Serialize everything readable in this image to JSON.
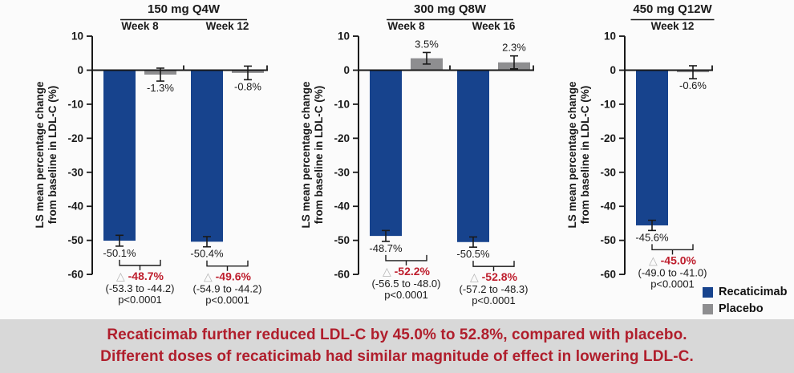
{
  "page": {
    "background": "#fbfbfb",
    "banner": {
      "bg": "#d8d8d8",
      "text_color": "#b01e2c",
      "lines": [
        "Recaticimab further reduced LDL-C by 45.0% to 52.8%, compared with placebo.",
        "Different doses of recaticimab had similar magnitude of effect in lowering LDL-C."
      ]
    }
  },
  "colors": {
    "recaticimab": "#17438d",
    "placebo": "#8e8e90",
    "delta_red": "#be1e2d",
    "triangle_gray": "#b5b5b5",
    "axis_text": "#1a1a1a"
  },
  "legend": {
    "items": [
      {
        "label": "Recaticimab",
        "color": "#17438d"
      },
      {
        "label": "Placebo",
        "color": "#8e8e90"
      }
    ]
  },
  "y_axis": {
    "label_line1": "LS mean percentage change",
    "label_line2": "from baseline in LDL-C (%)",
    "min": -60,
    "max": 10,
    "ticks": [
      10,
      0,
      -10,
      -20,
      -30,
      -40,
      -50,
      -60
    ]
  },
  "chart_data": [
    {
      "type": "bar",
      "title": "150 mg Q4W",
      "ylim": [
        -60,
        10
      ],
      "groups": [
        {
          "label": "Week 8",
          "bars": [
            {
              "series": "Recaticimab",
              "value": -50.1,
              "label": "-50.1%",
              "err": 1.6
            },
            {
              "series": "Placebo",
              "value": -1.3,
              "label": "-1.3%",
              "err": 1.9
            }
          ],
          "diff": {
            "delta": "-48.7%",
            "ci": "(-53.3 to -44.2)",
            "p": "p<0.0001"
          }
        },
        {
          "label": "Week 12",
          "bars": [
            {
              "series": "Recaticimab",
              "value": -50.4,
              "label": "-50.4%",
              "err": 1.5
            },
            {
              "series": "Placebo",
              "value": -0.8,
              "label": "-0.8%",
              "err": 2.0
            }
          ],
          "diff": {
            "delta": "-49.6%",
            "ci": "(-54.9 to -44.2)",
            "p": "p<0.0001"
          }
        }
      ]
    },
    {
      "type": "bar",
      "title": "300 mg Q8W",
      "ylim": [
        -60,
        10
      ],
      "groups": [
        {
          "label": "Week 8",
          "bars": [
            {
              "series": "Recaticimab",
              "value": -48.7,
              "label": "-48.7%",
              "err": 1.6
            },
            {
              "series": "Placebo",
              "value": 3.5,
              "label": "3.5%",
              "err": 1.7
            }
          ],
          "diff": {
            "delta": "-52.2%",
            "ci": "(-56.5 to -48.0)",
            "p": "p<0.0001"
          }
        },
        {
          "label": "Week 16",
          "bars": [
            {
              "series": "Recaticimab",
              "value": -50.5,
              "label": "-50.5%",
              "err": 1.5
            },
            {
              "series": "Placebo",
              "value": 2.3,
              "label": "2.3%",
              "err": 1.9
            }
          ],
          "diff": {
            "delta": "-52.8%",
            "ci": "(-57.2 to -48.3)",
            "p": "p<0.0001"
          }
        }
      ]
    },
    {
      "type": "bar",
      "title": "450 mg Q12W",
      "ylim": [
        -60,
        10
      ],
      "groups": [
        {
          "label": "Week 12",
          "bars": [
            {
              "series": "Recaticimab",
              "value": -45.6,
              "label": "-45.6%",
              "err": 1.5
            },
            {
              "series": "Placebo",
              "value": -0.6,
              "label": "-0.6%",
              "err": 1.9
            }
          ],
          "diff": {
            "delta": "-45.0%",
            "ci": "(-49.0 to -41.0)",
            "p": "p<0.0001"
          }
        }
      ]
    }
  ]
}
